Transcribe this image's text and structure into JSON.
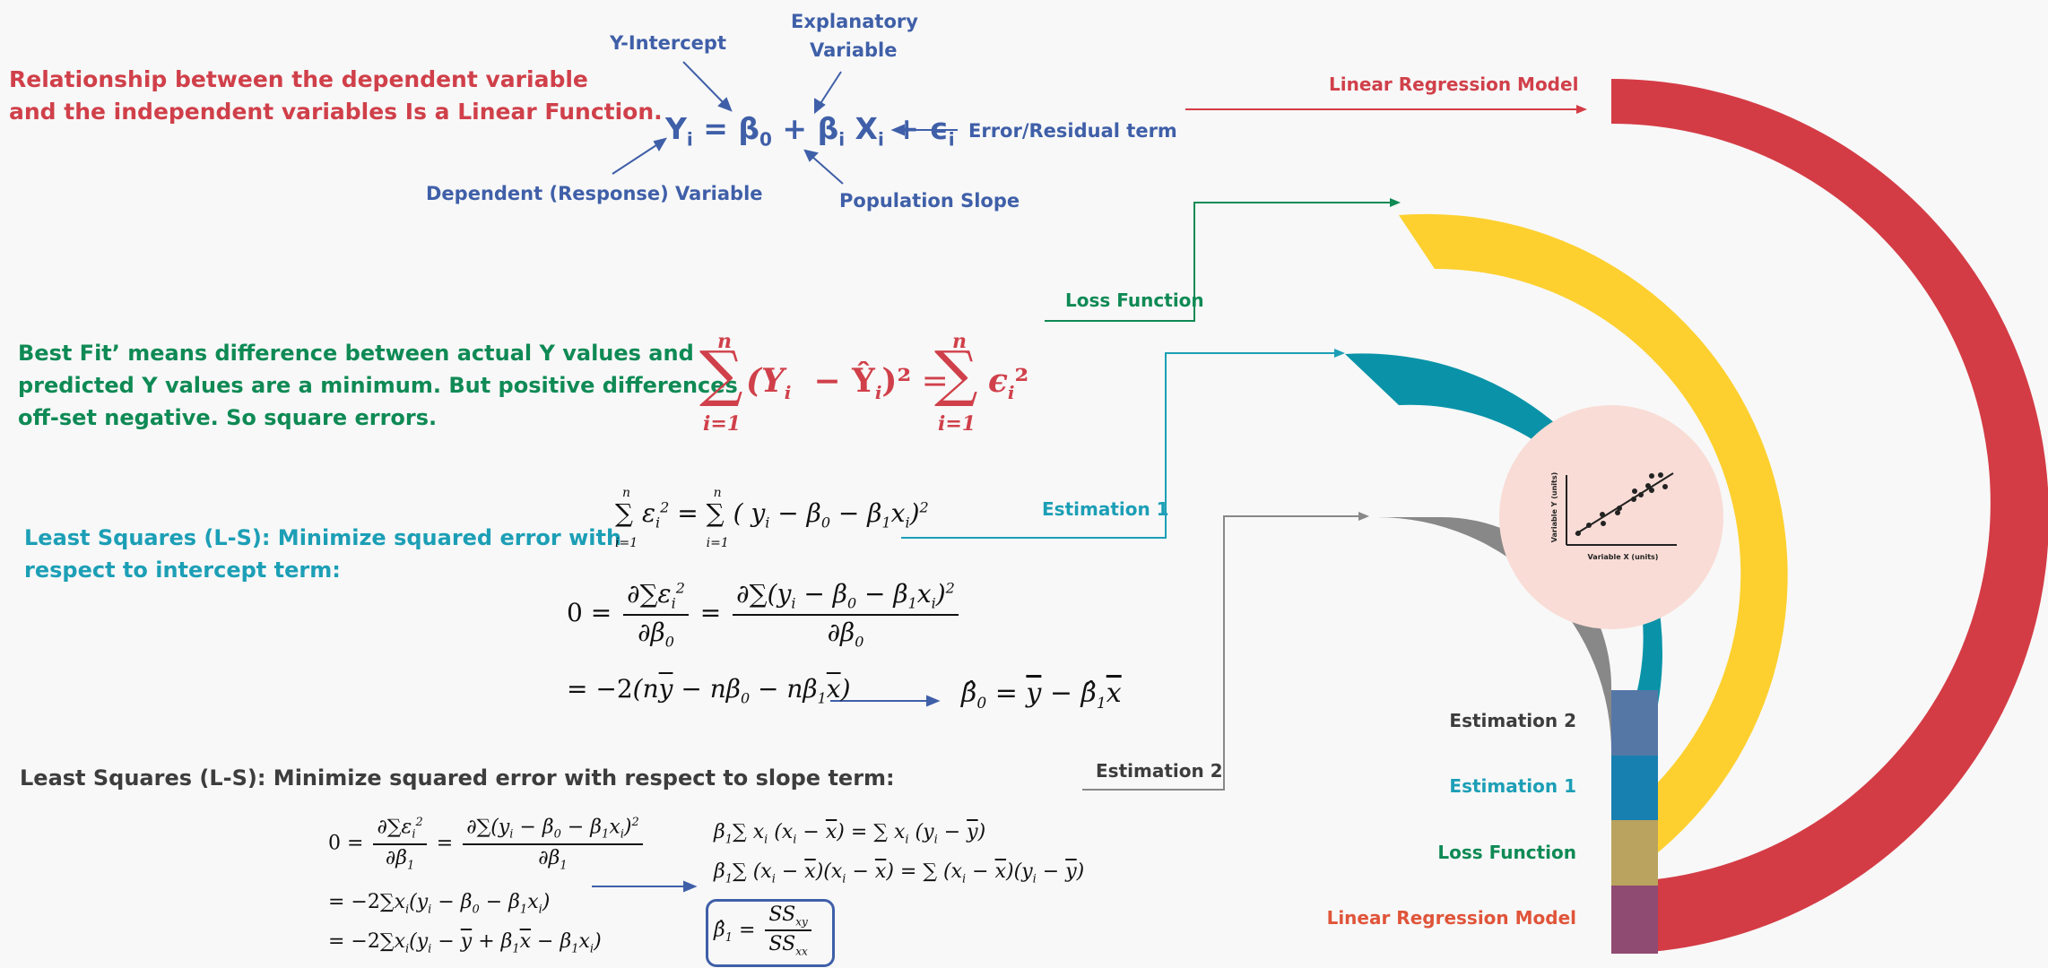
{
  "top_block": {
    "statement_line1": "Relationship between the dependent variable",
    "statement_line2": "and the independent variables Is a Linear Function.",
    "label_y_intercept": "Y-Intercept",
    "label_explanatory_1": "Explanatory",
    "label_explanatory_2": "Variable",
    "label_error": "Error/Residual  term",
    "label_dependent": "Dependent  (Response)  Variable",
    "label_slope": "Population  Slope",
    "equation": "Yi = β0 + βi Xi + ϵi"
  },
  "best_fit": {
    "line1": "Best Fit’ means difference between actual Y values and",
    "line2": "predicted Y values are a minimum. But positive differences",
    "line3": "off-set negative. So square errors."
  },
  "ls_intercept": {
    "line1": "Least Squares (L-S):  Minimize squared error with",
    "line2": "respect to intercept term:"
  },
  "ls_slope": {
    "line1": "Least Squares (L-S):  Minimize squared error with respect to slope term:"
  },
  "connectors": {
    "linear_regression_model": "Linear Regression Model",
    "loss_function": "Loss Function",
    "estimation_1": "Estimation 1",
    "estimation_2": "Estimation 2"
  },
  "legend": [
    {
      "label": "Estimation 2",
      "color": "#3d3d3d"
    },
    {
      "label": "Estimation 1",
      "color": "#1c9fb6"
    },
    {
      "label": "Loss Function",
      "color": "#0f8a55"
    },
    {
      "label": "Linear Regression Model",
      "color": "#e0553a"
    }
  ],
  "rings": [
    {
      "name": "Linear Regression Model",
      "color": "#d43c45"
    },
    {
      "name": "Loss Function",
      "color": "#fdd02f"
    },
    {
      "name": "Estimation 1",
      "color": "#0a93a8"
    },
    {
      "name": "Estimation 2",
      "color": "#888888"
    }
  ],
  "center_plot": {
    "xlabel": "Variable X (units)",
    "ylabel": "Variable Y (units)",
    "circle_color": "#f9dcd6"
  }
}
